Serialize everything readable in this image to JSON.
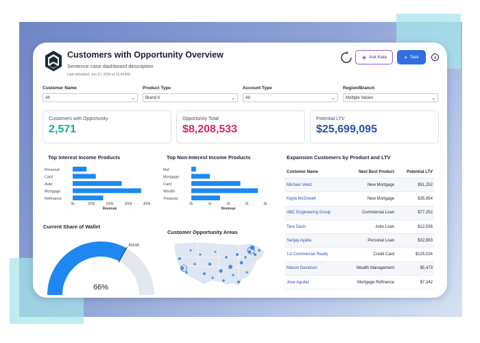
{
  "header": {
    "title": "Customers with Opportunity Overview",
    "subtitle": "Sentence case dashboard description",
    "last_refreshed": "Last refreshed: Jun 12, 2024 at 12:44 AM",
    "ask_label": "Ask Kaia",
    "task_label": "Task",
    "info_label": "i"
  },
  "filters": [
    {
      "label": "Customer Name",
      "value": "All"
    },
    {
      "label": "Product Type",
      "value": "Brand A"
    },
    {
      "label": "Account Type",
      "value": "All"
    },
    {
      "label": "Region/Branch",
      "value": "Multiple Values"
    }
  ],
  "kpis": [
    {
      "label": "Customers with Opportunity",
      "value": "2,571",
      "color": "#16a99a"
    },
    {
      "label": "Opportunity Total",
      "value": "$8,208,533",
      "color": "#e0245e"
    },
    {
      "label": "Potential LTV",
      "value": "$25,699,095",
      "color": "#2c4fa8"
    }
  ],
  "sections": {
    "interest": "Top Interest Income Products",
    "non_interest": "Top Non-Interest Income Products",
    "expansion": "Expansion Customers by Product and LTV",
    "wallet": "Current Share of Wallet",
    "areas": "Customer Opportunity Areas"
  },
  "chart_data": [
    {
      "type": "bar",
      "orientation": "horizontal",
      "title": "Top Interest Income Products",
      "categories": [
        "Personal",
        "Card",
        "Auto",
        "Mortgage",
        "Refinance"
      ],
      "values": [
        75000,
        125000,
        265000,
        370000,
        165000
      ],
      "xlabel": "Revenue",
      "xlim": [
        0,
        400000
      ],
      "ticks": [
        "0k",
        "100k",
        "200k",
        "300k",
        "400k"
      ],
      "color": "#1e88f0"
    },
    {
      "type": "bar",
      "orientation": "horizontal",
      "title": "Top Non-Interest Income Products",
      "categories": [
        "Ref",
        "Mortgage",
        "Card",
        "Wealth",
        "Treasury"
      ],
      "values": [
        250,
        1000,
        2650,
        3600,
        1550
      ],
      "xlabel": "Revenue",
      "xlim": [
        0,
        4000
      ],
      "ticks": [
        "0k",
        "1k",
        "2k",
        "3k",
        "4k"
      ],
      "color": "#1e88f0"
    },
    {
      "type": "gauge",
      "title": "Current Share of Wallet",
      "value_fraction": 0.66,
      "value_label": "66%",
      "marker_label": "418.6K",
      "color": "#1e88f0",
      "track_color": "#e3e7ef"
    }
  ],
  "table": {
    "columns": [
      "Customer Name",
      "Next Best Product",
      "Potential LTV"
    ],
    "rows": [
      [
        "Michael Velez",
        "New Mortgage",
        "$51,252"
      ],
      [
        "Kayla McDowell",
        "New Mortgage",
        "$35,954"
      ],
      [
        "ABC Engineering Group",
        "Commercial Loan",
        "$77,252"
      ],
      [
        "Tara Davis",
        "Auto Loan",
        "$12,536"
      ],
      [
        "Sanjay Ayalla",
        "Personal Loan",
        "$32,893"
      ],
      [
        "1st Commercial Realty",
        "Credit Card",
        "$125,024"
      ],
      [
        "Mason Davidson",
        "Wealth Management",
        "$5,473"
      ],
      [
        "Jose Aguilar",
        "Mortgage Refinance",
        "$7,342"
      ]
    ]
  }
}
